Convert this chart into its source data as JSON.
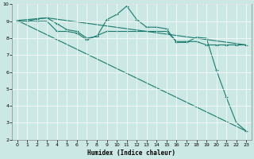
{
  "xlabel": "Humidex (Indice chaleur)",
  "bg_color": "#cce8e4",
  "line_color": "#1a7a6e",
  "grid_color": "#ffffff",
  "xlim": [
    -0.5,
    23.5
  ],
  "ylim": [
    2,
    10
  ],
  "xticks": [
    0,
    1,
    2,
    3,
    4,
    5,
    6,
    7,
    8,
    9,
    10,
    11,
    12,
    13,
    14,
    15,
    16,
    17,
    18,
    19,
    20,
    21,
    22,
    23
  ],
  "yticks": [
    2,
    3,
    4,
    5,
    6,
    7,
    8,
    9,
    10
  ],
  "line1_x": [
    0,
    1,
    2,
    3,
    4,
    5,
    6,
    7,
    8,
    9,
    10,
    11,
    12,
    13,
    14,
    15,
    16,
    17,
    18,
    19,
    20,
    21,
    22,
    23
  ],
  "line1_y": [
    9.0,
    9.0,
    9.15,
    9.2,
    8.85,
    8.5,
    8.4,
    8.0,
    8.1,
    9.1,
    9.4,
    9.9,
    9.1,
    8.65,
    8.65,
    8.55,
    7.75,
    7.75,
    8.05,
    8.0,
    6.1,
    4.5,
    3.0,
    2.5
  ],
  "line2_x": [
    0,
    1,
    2,
    3,
    4,
    5,
    6,
    7,
    8,
    9,
    10,
    11,
    12,
    13,
    14,
    15,
    16,
    17,
    18,
    19,
    20,
    21,
    22,
    23
  ],
  "line2_y": [
    9.0,
    9.0,
    9.0,
    9.0,
    8.4,
    8.4,
    8.3,
    7.9,
    8.15,
    8.4,
    8.4,
    8.4,
    8.4,
    8.4,
    8.4,
    8.4,
    7.8,
    7.8,
    7.8,
    7.6,
    7.6,
    7.6,
    7.6,
    7.6
  ],
  "line3_x": [
    0,
    23
  ],
  "line3_y": [
    9.05,
    2.5
  ],
  "line4_x": [
    0,
    3,
    23
  ],
  "line4_y": [
    9.05,
    9.2,
    7.6
  ]
}
